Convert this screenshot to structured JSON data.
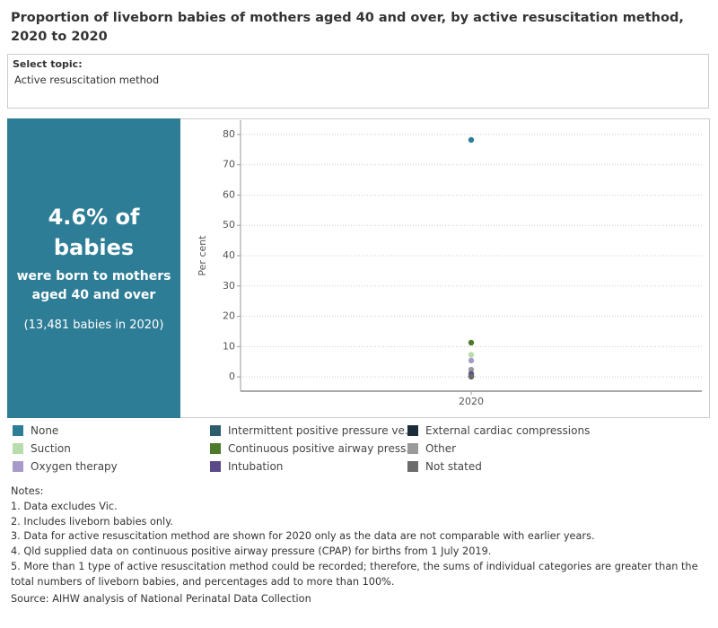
{
  "header": {
    "title": "Proportion of liveborn babies of mothers aged 40 and over, by active resuscitation method, 2020 to 2020"
  },
  "selector": {
    "label": "Select topic:",
    "value": "Active resuscitation method"
  },
  "kpi": {
    "headline_1": "4.6% of",
    "headline_2": "babies",
    "subline": "were born to mothers aged 40 and over",
    "note": "(13,481 babies in 2020)"
  },
  "chart_data": {
    "type": "scatter",
    "y_label": "Per cent",
    "categories": [
      "2020"
    ],
    "ylim": [
      -4.7,
      84.7
    ],
    "yticks": [
      0,
      10,
      20,
      30,
      40,
      50,
      60,
      70,
      80
    ],
    "grid": true,
    "series": [
      {
        "name": "None",
        "color": "#2e7d96",
        "values": [
          78.2
        ]
      },
      {
        "name": "Intermittent positive pressure ve..",
        "color": "#2b5d6b",
        "values": [
          0.3
        ]
      },
      {
        "name": "External cardiac compressions",
        "color": "#1b2d3a",
        "values": [
          0.1
        ]
      },
      {
        "name": "Suction",
        "color": "#b8dcab",
        "values": [
          7.3
        ]
      },
      {
        "name": "Continuous positive airway press..",
        "color": "#4d7a2a",
        "values": [
          11.3
        ]
      },
      {
        "name": "Other",
        "color": "#9a9a9a",
        "values": [
          2.4
        ]
      },
      {
        "name": "Oxygen therapy",
        "color": "#a99bc9",
        "values": [
          5.4
        ]
      },
      {
        "name": "Intubation",
        "color": "#5b4a8a",
        "values": [
          1.0
        ]
      },
      {
        "name": "Not stated",
        "color": "#6b6b6b",
        "values": [
          0.2
        ]
      }
    ]
  },
  "notes": {
    "heading": "Notes:",
    "items": [
      "1. Data excludes Vic.",
      "2. Includes liveborn babies only.",
      "3. Data for active resuscitation method are shown for 2020 only as the data are not comparable with earlier years.",
      "4. Qld supplied data on continuous positive airway pressure (CPAP) for births from 1 July 2019.",
      "5. More than 1 type of active resuscitation method could be recorded; therefore, the sums of individual categories are greater than the total numbers of liveborn babies, and percentages add to more than 100%."
    ]
  },
  "source": "Source: AIHW analysis of National Perinatal Data Collection"
}
